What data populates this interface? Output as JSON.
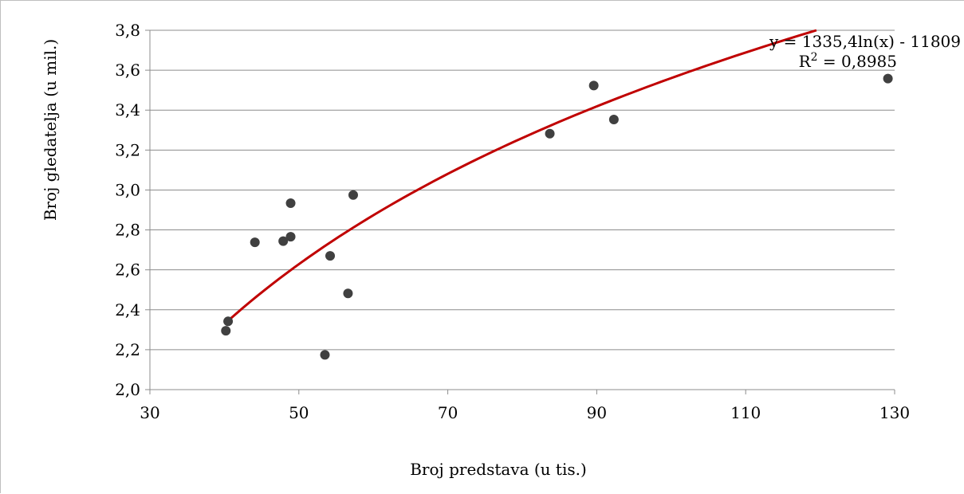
{
  "chart_data": {
    "type": "scatter",
    "title": "",
    "xlabel": "Broj predstava (u tis.)",
    "ylabel": "Broj gledatelja (u mil.)",
    "xlim": [
      30,
      130
    ],
    "ylim": [
      2.0,
      3.8
    ],
    "x_ticks": [
      30,
      50,
      70,
      90,
      110,
      130
    ],
    "x_tick_labels": [
      "30",
      "50",
      "70",
      "90",
      "110",
      "130"
    ],
    "y_ticks": [
      2.0,
      2.2,
      2.4,
      2.6,
      2.8,
      3.0,
      3.2,
      3.4,
      3.6,
      3.8
    ],
    "y_tick_labels": [
      "2,0",
      "2,2",
      "2,4",
      "2,6",
      "2,8",
      "3,0",
      "3,2",
      "3,4",
      "3,6",
      "3,8"
    ],
    "grid": "horizontal",
    "series": [
      {
        "color": "#404040",
        "points": [
          {
            "x": 40.2,
            "y": 2.295
          },
          {
            "x": 40.5,
            "y": 2.342
          },
          {
            "x": 44.1,
            "y": 2.738
          },
          {
            "x": 47.9,
            "y": 2.744
          },
          {
            "x": 48.9,
            "y": 2.766
          },
          {
            "x": 48.9,
            "y": 2.934
          },
          {
            "x": 53.5,
            "y": 2.174
          },
          {
            "x": 54.2,
            "y": 2.67
          },
          {
            "x": 56.6,
            "y": 2.482
          },
          {
            "x": 57.3,
            "y": 2.975
          },
          {
            "x": 83.7,
            "y": 3.282
          },
          {
            "x": 89.6,
            "y": 3.523
          },
          {
            "x": 92.3,
            "y": 3.353
          },
          {
            "x": 129.1,
            "y": 3.558
          }
        ]
      }
    ],
    "trendline": {
      "type": "logarithmic",
      "color": "#c00000",
      "x_range": [
        40.5,
        119.5
      ],
      "y_range": [
        2.345,
        3.8
      ],
      "equation_label": "y = 1335,4ln(x) - 11809",
      "r2_label_prefix": "R",
      "r2_label_sup": "2",
      "r2_label_suffix": " = 0,8985"
    }
  }
}
